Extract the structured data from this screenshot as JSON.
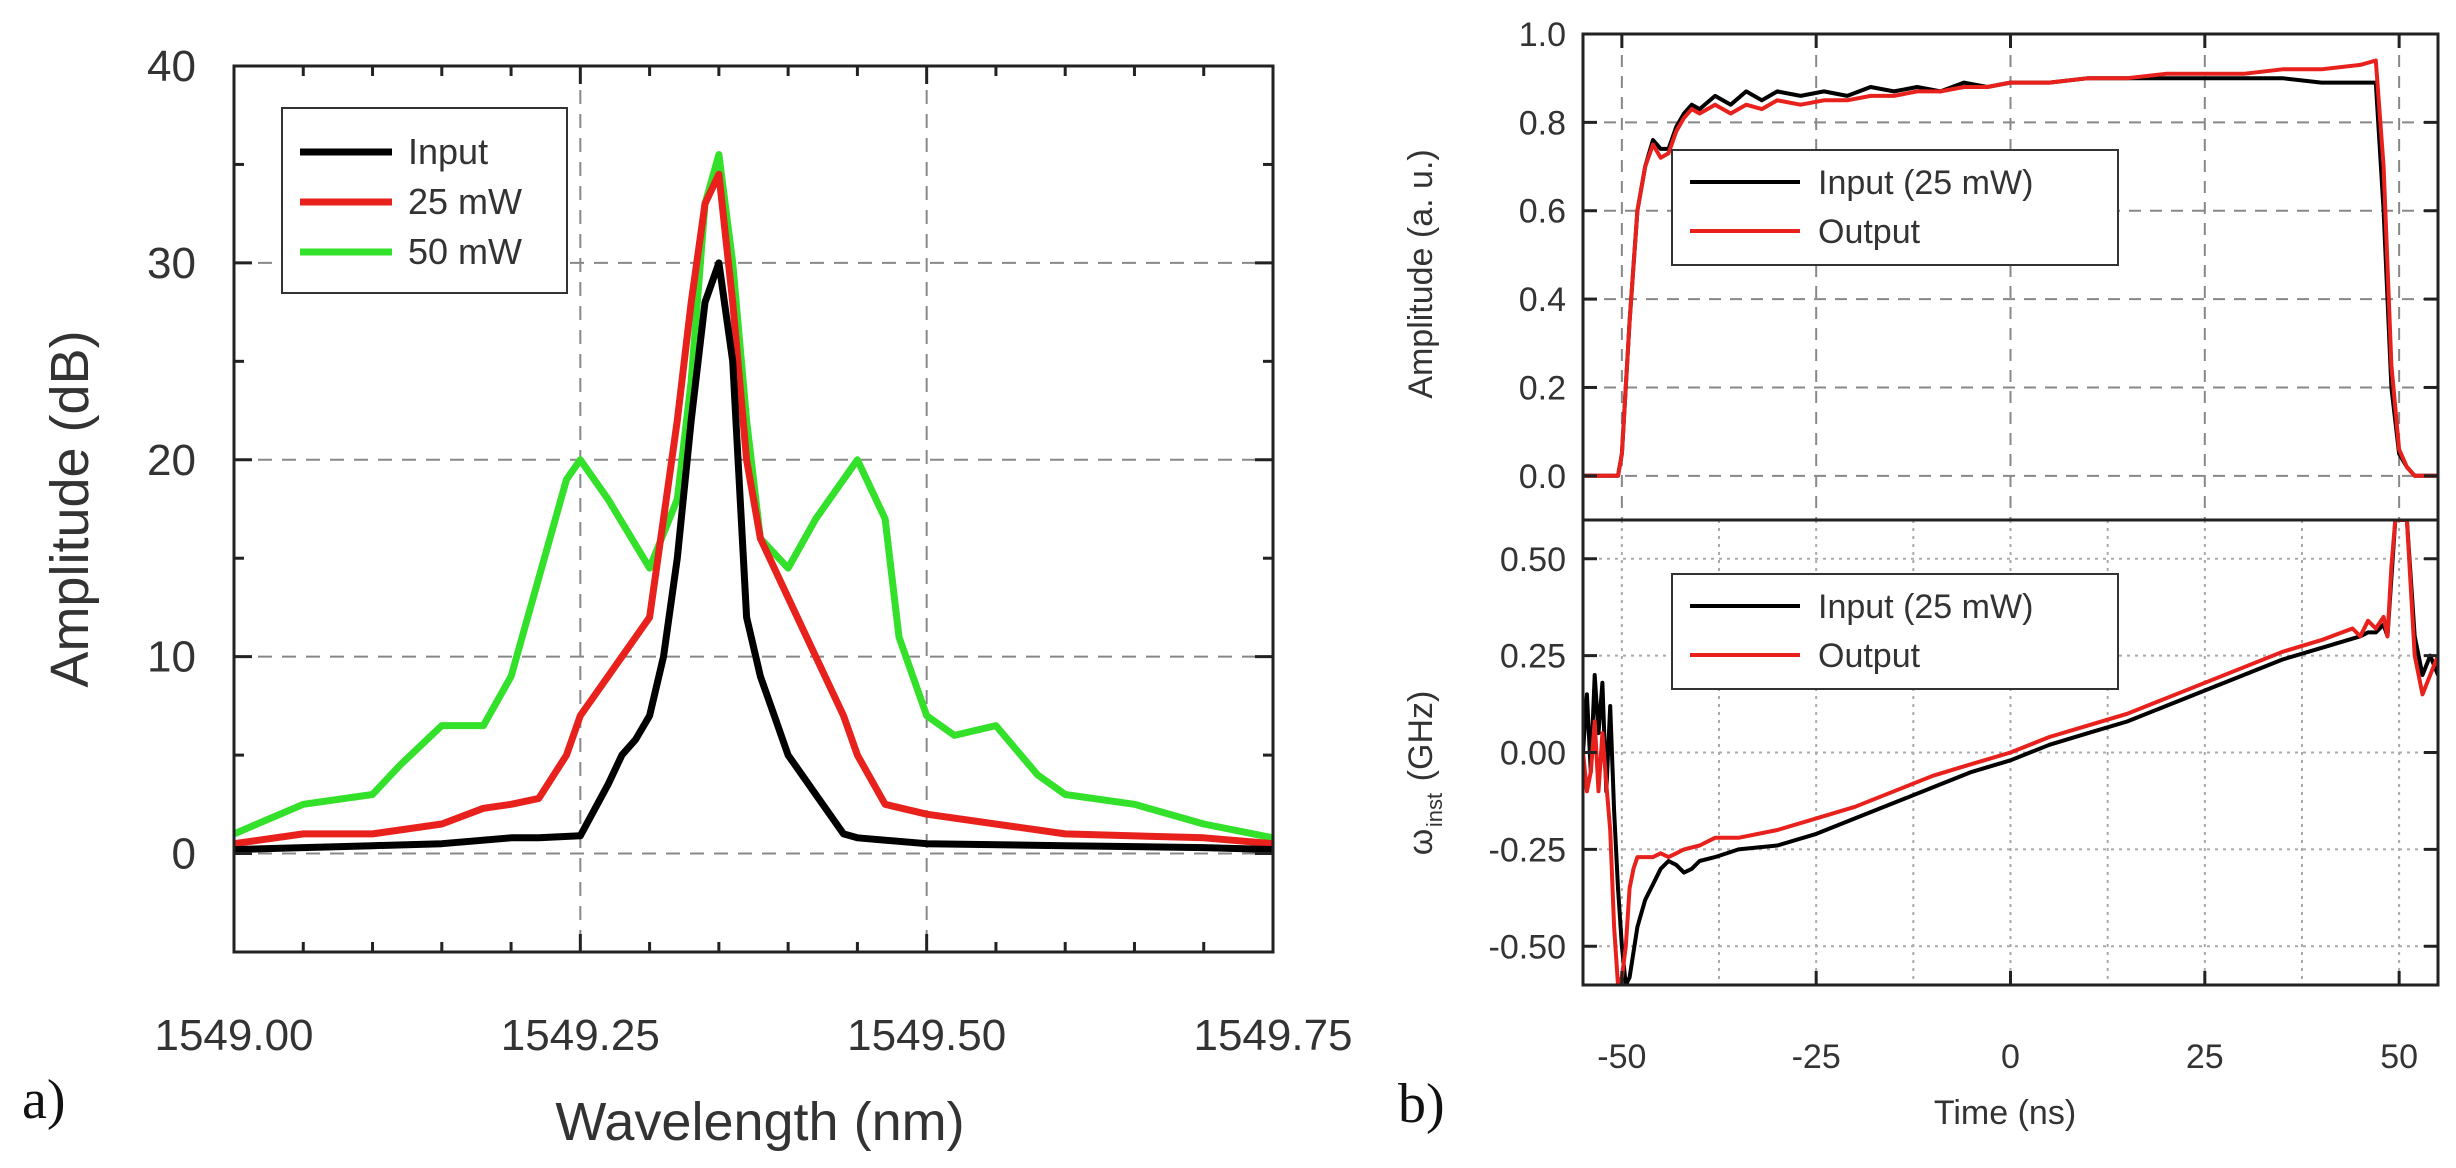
{
  "chart_data": [
    {
      "id": "a",
      "panel_label": "a)",
      "type": "line",
      "xlabel": "Wavelength (nm)",
      "ylabel": "Amplitude (dB)",
      "xlim": [
        1549.0,
        1549.75
      ],
      "ylim": [
        -5,
        40
      ],
      "x_ticks": [
        1549.0,
        1549.25,
        1549.5,
        1549.75
      ],
      "x_tick_labels": [
        "1549.00",
        "1549.25",
        "1549.50",
        "1549.75"
      ],
      "y_ticks": [
        0,
        10,
        20,
        30,
        40
      ],
      "y_tick_labels": [
        "0",
        "10",
        "20",
        "30",
        "40"
      ],
      "grid": "dashed",
      "legend_position": "top-left",
      "legend": [
        "Input",
        "25 mW",
        "50 mW"
      ],
      "series": [
        {
          "name": "Input",
          "color": "#000000",
          "x": [
            1549.0,
            1549.05,
            1549.1,
            1549.15,
            1549.2,
            1549.22,
            1549.25,
            1549.27,
            1549.28,
            1549.29,
            1549.3,
            1549.31,
            1549.32,
            1549.33,
            1549.34,
            1549.35,
            1549.36,
            1549.37,
            1549.38,
            1549.39,
            1549.4,
            1549.42,
            1549.44,
            1549.45,
            1549.5,
            1549.6,
            1549.7,
            1549.75
          ],
          "y": [
            0.2,
            0.3,
            0.4,
            0.5,
            0.8,
            0.8,
            0.9,
            3.5,
            5.0,
            5.8,
            7.0,
            10.0,
            15.0,
            22.0,
            28.0,
            30.0,
            25.0,
            12.0,
            9.0,
            7.0,
            5.0,
            3.0,
            1.0,
            0.8,
            0.5,
            0.4,
            0.3,
            0.2
          ]
        },
        {
          "name": "25 mW",
          "color": "#e8211c",
          "x": [
            1549.0,
            1549.05,
            1549.1,
            1549.15,
            1549.18,
            1549.2,
            1549.22,
            1549.24,
            1549.25,
            1549.26,
            1549.28,
            1549.3,
            1549.31,
            1549.32,
            1549.33,
            1549.34,
            1549.35,
            1549.36,
            1549.37,
            1549.38,
            1549.4,
            1549.42,
            1549.44,
            1549.45,
            1549.47,
            1549.5,
            1549.6,
            1549.7,
            1549.75
          ],
          "y": [
            0.5,
            1.0,
            1.0,
            1.5,
            2.3,
            2.5,
            2.8,
            5.0,
            7.0,
            8.0,
            10.0,
            12.0,
            17.0,
            22.0,
            28.0,
            33.0,
            34.5,
            28.0,
            20.0,
            16.0,
            13.0,
            10.0,
            7.0,
            5.0,
            2.5,
            2.0,
            1.0,
            0.8,
            0.5
          ]
        },
        {
          "name": "50 mW",
          "color": "#33e02a",
          "x": [
            1549.0,
            1549.05,
            1549.1,
            1549.12,
            1549.15,
            1549.18,
            1549.2,
            1549.22,
            1549.24,
            1549.25,
            1549.27,
            1549.3,
            1549.32,
            1549.33,
            1549.34,
            1549.35,
            1549.36,
            1549.37,
            1549.38,
            1549.4,
            1549.42,
            1549.45,
            1549.47,
            1549.48,
            1549.5,
            1549.52,
            1549.55,
            1549.58,
            1549.6,
            1549.65,
            1549.7,
            1549.75
          ],
          "y": [
            1.0,
            2.5,
            3.0,
            4.5,
            6.5,
            6.5,
            9.0,
            14.0,
            19.0,
            20.0,
            18.0,
            14.5,
            18.0,
            24.0,
            33.0,
            35.5,
            30.0,
            22.0,
            16.0,
            14.5,
            17.0,
            20.0,
            17.0,
            11.0,
            7.0,
            6.0,
            6.5,
            4.0,
            3.0,
            2.5,
            1.5,
            0.8
          ]
        }
      ]
    },
    {
      "id": "b-top",
      "panel_label": "b)",
      "type": "line",
      "xlabel": "",
      "ylabel": "Amplitude (a. u.)",
      "xlim": [
        -55,
        55
      ],
      "ylim": [
        -0.1,
        1.0
      ],
      "x_ticks": [
        -50,
        -25,
        0,
        25,
        50
      ],
      "y_ticks": [
        0.0,
        0.2,
        0.4,
        0.6,
        0.8,
        1.0
      ],
      "y_tick_labels": [
        "0.0",
        "0.2",
        "0.4",
        "0.6",
        "0.8",
        "1.0"
      ],
      "grid": "dashed",
      "legend_position": "center-left",
      "legend": [
        "Input (25 mW)",
        "Output"
      ],
      "series": [
        {
          "name": "Input (25 mW)",
          "color": "#000000",
          "x": [
            -55,
            -50.5,
            -50,
            -49,
            -48,
            -47,
            -46,
            -45,
            -44,
            -43,
            -42,
            -41,
            -40,
            -38,
            -36,
            -34,
            -32,
            -30,
            -27,
            -24,
            -21,
            -18,
            -15,
            -12,
            -9,
            -6,
            -3,
            0,
            5,
            10,
            15,
            20,
            25,
            30,
            35,
            40,
            45,
            47,
            48,
            49,
            50,
            51,
            52,
            55
          ],
          "y": [
            0.0,
            0.0,
            0.05,
            0.35,
            0.6,
            0.7,
            0.76,
            0.74,
            0.74,
            0.79,
            0.82,
            0.84,
            0.83,
            0.86,
            0.84,
            0.87,
            0.85,
            0.87,
            0.86,
            0.87,
            0.86,
            0.88,
            0.87,
            0.88,
            0.87,
            0.89,
            0.88,
            0.89,
            0.89,
            0.9,
            0.9,
            0.9,
            0.9,
            0.9,
            0.9,
            0.89,
            0.89,
            0.89,
            0.6,
            0.2,
            0.05,
            0.02,
            0.0,
            0.0
          ]
        },
        {
          "name": "Output",
          "color": "#e8211c",
          "x": [
            -55,
            -50.5,
            -50,
            -49,
            -48,
            -47,
            -46,
            -45,
            -44,
            -43,
            -42,
            -41,
            -40,
            -38,
            -36,
            -34,
            -32,
            -30,
            -27,
            -24,
            -21,
            -18,
            -15,
            -12,
            -9,
            -6,
            -3,
            0,
            5,
            10,
            15,
            20,
            25,
            30,
            35,
            40,
            45,
            47,
            48,
            49,
            50,
            51,
            52,
            55
          ],
          "y": [
            0.0,
            0.0,
            0.05,
            0.35,
            0.6,
            0.7,
            0.75,
            0.72,
            0.73,
            0.78,
            0.81,
            0.83,
            0.82,
            0.84,
            0.82,
            0.84,
            0.83,
            0.85,
            0.84,
            0.85,
            0.85,
            0.86,
            0.86,
            0.87,
            0.87,
            0.88,
            0.88,
            0.89,
            0.89,
            0.9,
            0.9,
            0.91,
            0.91,
            0.91,
            0.92,
            0.92,
            0.93,
            0.94,
            0.7,
            0.25,
            0.06,
            0.02,
            0.0,
            0.0
          ]
        }
      ]
    },
    {
      "id": "b-bottom",
      "type": "line",
      "xlabel": "Time (ns)",
      "ylabel_main": "ω",
      "ylabel_sub": "inst",
      "ylabel_unit": "(GHz)",
      "xlim": [
        -55,
        55
      ],
      "ylim": [
        -0.6,
        0.6
      ],
      "x_ticks": [
        -50,
        -25,
        0,
        25,
        50
      ],
      "x_tick_labels": [
        "-50",
        "-25",
        "0",
        "25",
        "50"
      ],
      "y_ticks": [
        -0.5,
        -0.25,
        0.0,
        0.25,
        0.5
      ],
      "y_tick_labels": [
        "-0.50",
        "-0.25",
        "0.00",
        "0.25",
        "0.50"
      ],
      "grid": "dotted",
      "legend_position": "top-left",
      "legend": [
        "Input (25 mW)",
        "Output"
      ],
      "series": [
        {
          "name": "Input (25 mW)",
          "color": "#000000",
          "x": [
            -55,
            -54.5,
            -54,
            -53.5,
            -53,
            -52.5,
            -52,
            -51.5,
            -51,
            -50.5,
            -50,
            -49.5,
            -49,
            -48,
            -47,
            -46,
            -45,
            -44,
            -43,
            -42,
            -41,
            -40,
            -38,
            -35,
            -30,
            -25,
            -20,
            -15,
            -10,
            -5,
            0,
            5,
            10,
            15,
            20,
            25,
            30,
            35,
            40,
            45,
            46,
            47,
            48,
            48.5,
            49,
            49.5,
            50,
            51,
            52,
            53,
            54,
            55
          ],
          "y": [
            0.0,
            0.15,
            -0.05,
            0.2,
            0.05,
            0.18,
            -0.1,
            0.12,
            -0.15,
            -0.35,
            -0.5,
            -0.6,
            -0.58,
            -0.45,
            -0.38,
            -0.34,
            -0.3,
            -0.28,
            -0.29,
            -0.31,
            -0.3,
            -0.28,
            -0.27,
            -0.25,
            -0.24,
            -0.21,
            -0.17,
            -0.13,
            -0.09,
            -0.05,
            -0.02,
            0.02,
            0.05,
            0.08,
            0.12,
            0.16,
            0.2,
            0.24,
            0.27,
            0.3,
            0.31,
            0.31,
            0.33,
            0.3,
            0.45,
            0.6,
            0.6,
            0.6,
            0.3,
            0.2,
            0.25,
            0.2
          ]
        },
        {
          "name": "Output",
          "color": "#e8211c",
          "x": [
            -55,
            -54.5,
            -54,
            -53.5,
            -53,
            -52.5,
            -52,
            -51.5,
            -51,
            -50.5,
            -50,
            -49.5,
            -49,
            -48.5,
            -48,
            -47,
            -46,
            -45,
            -44,
            -43,
            -42,
            -40,
            -38,
            -35,
            -30,
            -25,
            -20,
            -15,
            -10,
            -5,
            0,
            5,
            10,
            15,
            20,
            25,
            30,
            35,
            40,
            44,
            45,
            46,
            47,
            48,
            48.5,
            49,
            49.5,
            50,
            51,
            52,
            53,
            54,
            55
          ],
          "y": [
            0.0,
            -0.1,
            -0.05,
            0.08,
            -0.1,
            0.05,
            -0.08,
            -0.2,
            -0.45,
            -0.6,
            -0.58,
            -0.5,
            -0.35,
            -0.3,
            -0.27,
            -0.27,
            -0.27,
            -0.26,
            -0.27,
            -0.26,
            -0.25,
            -0.24,
            -0.22,
            -0.22,
            -0.2,
            -0.17,
            -0.14,
            -0.1,
            -0.06,
            -0.03,
            0.0,
            0.04,
            0.07,
            0.1,
            0.14,
            0.18,
            0.22,
            0.26,
            0.29,
            0.32,
            0.3,
            0.34,
            0.32,
            0.35,
            0.3,
            0.48,
            0.6,
            0.6,
            0.6,
            0.25,
            0.15,
            0.2,
            0.25
          ]
        }
      ]
    }
  ]
}
